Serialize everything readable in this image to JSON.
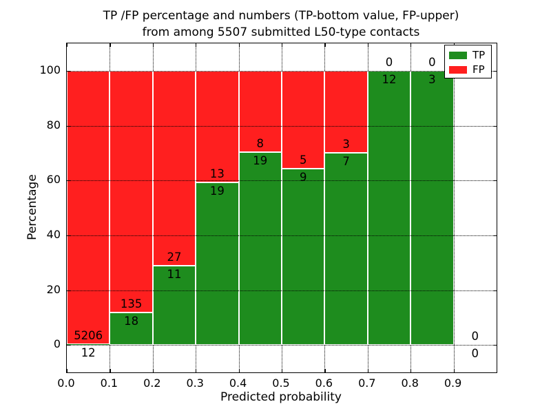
{
  "figure": {
    "title_line1": "TP /FP percentage and numbers (TP-bottom value, FP-upper)",
    "title_line2": "from among 5507 submitted L50-type contacts",
    "xlabel": "Predicted probability",
    "ylabel": "Percentage"
  },
  "legend": {
    "position": "upper right",
    "items": [
      {
        "label": "TP",
        "color": "#1e8c1e"
      },
      {
        "label": "FP",
        "color": "#ff1f1f"
      }
    ]
  },
  "chart_data": {
    "type": "bar",
    "stacked": true,
    "title": "TP /FP percentage and numbers (TP-bottom value, FP-upper) from among 5507 submitted L50-type contacts",
    "xlabel": "Predicted probability",
    "ylabel": "Percentage",
    "xlim": [
      0.0,
      1.0
    ],
    "ylim": [
      -10,
      110
    ],
    "grid": true,
    "x_ticks": [
      "0.0",
      "0.1",
      "0.2",
      "0.3",
      "0.4",
      "0.5",
      "0.6",
      "0.7",
      "0.8",
      "0.9"
    ],
    "y_ticks": [
      "0",
      "20",
      "40",
      "60",
      "80",
      "100"
    ],
    "series": [
      {
        "name": "TP",
        "color": "#1e8c1e"
      },
      {
        "name": "FP",
        "color": "#ff1f1f"
      }
    ],
    "bins": [
      {
        "x0": 0.0,
        "x1": 0.1,
        "tp_count": 12,
        "fp_count": 5206,
        "tp_pct": 0.23,
        "fp_pct": 99.77
      },
      {
        "x0": 0.1,
        "x1": 0.2,
        "tp_count": 18,
        "fp_count": 135,
        "tp_pct": 11.76,
        "fp_pct": 88.24
      },
      {
        "x0": 0.2,
        "x1": 0.3,
        "tp_count": 11,
        "fp_count": 27,
        "tp_pct": 28.95,
        "fp_pct": 71.05
      },
      {
        "x0": 0.3,
        "x1": 0.4,
        "tp_count": 19,
        "fp_count": 13,
        "tp_pct": 59.38,
        "fp_pct": 40.62
      },
      {
        "x0": 0.4,
        "x1": 0.5,
        "tp_count": 19,
        "fp_count": 8,
        "tp_pct": 70.37,
        "fp_pct": 29.63
      },
      {
        "x0": 0.5,
        "x1": 0.6,
        "tp_count": 9,
        "fp_count": 5,
        "tp_pct": 64.29,
        "fp_pct": 35.71
      },
      {
        "x0": 0.6,
        "x1": 0.7,
        "tp_count": 7,
        "fp_count": 3,
        "tp_pct": 70.0,
        "fp_pct": 30.0
      },
      {
        "x0": 0.7,
        "x1": 0.8,
        "tp_count": 12,
        "fp_count": 0,
        "tp_pct": 100.0,
        "fp_pct": 0.0
      },
      {
        "x0": 0.8,
        "x1": 0.9,
        "tp_count": 3,
        "fp_count": 0,
        "tp_pct": 100.0,
        "fp_pct": 0.0
      },
      {
        "x0": 0.9,
        "x1": 1.0,
        "tp_count": 0,
        "fp_count": 0,
        "tp_pct": 0.0,
        "fp_pct": 0.0
      }
    ]
  }
}
